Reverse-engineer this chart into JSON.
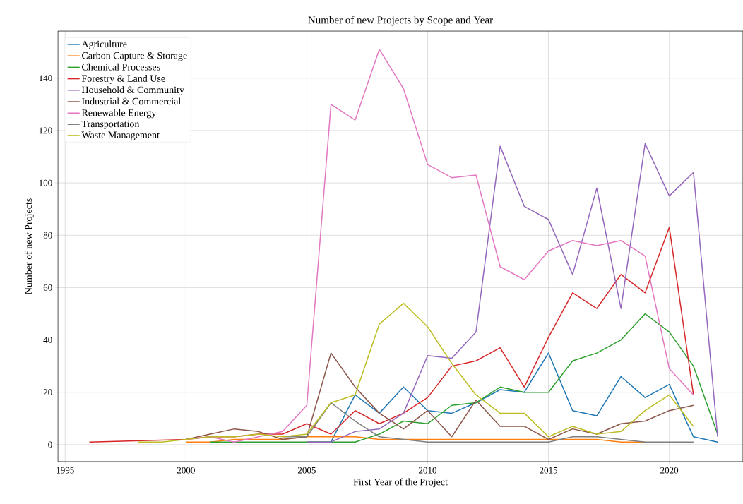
{
  "chart_data": {
    "type": "line",
    "title": "Number of new Projects by Scope and Year",
    "xlabel": "First Year of the Project",
    "ylabel": "Number of new Projects",
    "xlim": [
      1994.7,
      2023.05
    ],
    "ylim": [
      -6.5,
      158
    ],
    "xticks": [
      1995,
      2000,
      2005,
      2010,
      2015,
      2020
    ],
    "yticks": [
      0,
      20,
      40,
      60,
      80,
      100,
      120,
      140
    ],
    "grid": true,
    "legend": "top left",
    "series": [
      {
        "name": "Agriculture",
        "color": "#1f77b4",
        "x": [
          2005,
          2006,
          2007,
          2008,
          2009,
          2010,
          2011,
          2012,
          2013,
          2014,
          2015,
          2016,
          2017,
          2018,
          2019,
          2020,
          2021,
          2022
        ],
        "values": [
          1,
          1,
          19,
          12,
          22,
          13,
          12,
          16,
          21,
          20,
          35,
          13,
          11,
          26,
          18,
          23,
          3,
          1
        ]
      },
      {
        "name": "Carbon Capture & Storage",
        "color": "#ff7f0e",
        "x": [
          2000,
          2001,
          2002,
          2003,
          2004,
          2005,
          2006,
          2007,
          2008,
          2009,
          2010,
          2011,
          2012,
          2013,
          2014,
          2015,
          2016,
          2017,
          2018,
          2019
        ],
        "values": [
          1,
          1,
          2,
          2,
          2,
          3,
          3,
          3,
          2,
          2,
          2,
          2,
          2,
          2,
          2,
          2,
          2,
          2,
          1,
          1
        ]
      },
      {
        "name": "Chemical Processes",
        "color": "#2ca02c",
        "x": [
          2001,
          2002,
          2003,
          2004,
          2005,
          2006,
          2007,
          2008,
          2009,
          2010,
          2011,
          2012,
          2013,
          2014,
          2015,
          2016,
          2017,
          2018,
          2019,
          2020,
          2021,
          2022
        ],
        "values": [
          1,
          1,
          1,
          1,
          1,
          1,
          1,
          4,
          9,
          8,
          15,
          16,
          22,
          20,
          20,
          32,
          35,
          40,
          50,
          43,
          30,
          4
        ]
      },
      {
        "name": "Forestry & Land Use",
        "color": "#d62728",
        "x": [
          1996,
          2000,
          2001,
          2002,
          2003,
          2004,
          2005,
          2006,
          2007,
          2008,
          2009,
          2010,
          2011,
          2012,
          2013,
          2014,
          2015,
          2016,
          2017,
          2018,
          2019,
          2020,
          2021
        ],
        "values": [
          1,
          2,
          3,
          3,
          4,
          4,
          8,
          4,
          13,
          8,
          12,
          18,
          30,
          32,
          37,
          22,
          41,
          58,
          52,
          65,
          58,
          83,
          19
        ]
      },
      {
        "name": "Household & Community",
        "color": "#9467bd",
        "x": [
          2005,
          2006,
          2007,
          2008,
          2009,
          2010,
          2011,
          2012,
          2013,
          2014,
          2015,
          2016,
          2017,
          2018,
          2019,
          2020,
          2021,
          2022
        ],
        "values": [
          1,
          1,
          5,
          6,
          12,
          34,
          33,
          43,
          114,
          91,
          86,
          65,
          98,
          52,
          115,
          95,
          104,
          3
        ]
      },
      {
        "name": "Industrial & Commercial",
        "color": "#8c564b",
        "x": [
          2000,
          2001,
          2002,
          2003,
          2004,
          2005,
          2006,
          2007,
          2008,
          2009,
          2010,
          2011,
          2012,
          2013,
          2014,
          2015,
          2016,
          2017,
          2018,
          2019,
          2020,
          2021
        ],
        "values": [
          2,
          4,
          6,
          5,
          2,
          3,
          35,
          22,
          12,
          6,
          13,
          3,
          17,
          7,
          7,
          2,
          6,
          4,
          8,
          9,
          13,
          15
        ]
      },
      {
        "name": "Renewable Energy",
        "color": "#e377c2",
        "x": [
          2000,
          2001,
          2002,
          2003,
          2004,
          2005,
          2006,
          2007,
          2008,
          2009,
          2010,
          2011,
          2012,
          2013,
          2014,
          2015,
          2016,
          2017,
          2018,
          2019,
          2020,
          2021
        ],
        "values": [
          2,
          3,
          1,
          3,
          5,
          15,
          130,
          124,
          151,
          136,
          107,
          102,
          103,
          68,
          63,
          74,
          78,
          76,
          78,
          72,
          29,
          19
        ]
      },
      {
        "name": "Transportation",
        "color": "#7f7f7f",
        "x": [
          2004,
          2005,
          2006,
          2007,
          2008,
          2009,
          2010,
          2011,
          2012,
          2013,
          2014,
          2015,
          2016,
          2017,
          2018,
          2019,
          2020,
          2021
        ],
        "values": [
          3,
          3,
          16,
          9,
          3,
          2,
          1,
          1,
          1,
          1,
          1,
          1,
          3,
          3,
          2,
          1,
          1,
          1
        ]
      },
      {
        "name": "Waste Management",
        "color": "#bcbd22",
        "x": [
          1998,
          1999,
          2000,
          2001,
          2002,
          2003,
          2004,
          2005,
          2006,
          2007,
          2008,
          2009,
          2010,
          2011,
          2012,
          2013,
          2014,
          2015,
          2016,
          2017,
          2018,
          2019,
          2020,
          2021
        ],
        "values": [
          1,
          1,
          2,
          3,
          3,
          4,
          3,
          4,
          16,
          19,
          46,
          54,
          45,
          31,
          19,
          12,
          12,
          3,
          7,
          4,
          5,
          13,
          19,
          7
        ]
      }
    ]
  }
}
